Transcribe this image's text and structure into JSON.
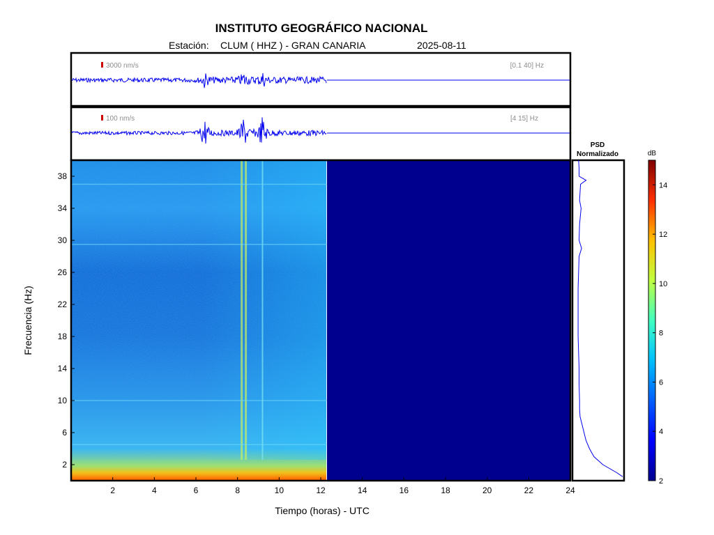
{
  "header": {
    "title": "INSTITUTO GEOGRÁFICO NACIONAL",
    "station_label": "Estación:",
    "station": "CLUM ( HHZ ) - GRAN CANARIA",
    "date": "2025-08-11"
  },
  "colors": {
    "trace": "#0000ee",
    "scale_mark": "#cc0000",
    "no_data": "#00008f",
    "annotation_text": "#8c8c8c"
  },
  "chart_data": [
    {
      "type": "line",
      "panel": "seismogram-broadband",
      "amplitude_scale_label": "3000 nm/s",
      "filter_label": "[0.1 40] Hz",
      "x_range": [
        0,
        24
      ],
      "data_end_hour": 12.3,
      "events_hours": [
        6.4,
        8.3,
        9.2
      ]
    },
    {
      "type": "line",
      "panel": "seismogram-filtered",
      "amplitude_scale_label": "100 nm/s",
      "filter_label": "[4 15] Hz",
      "x_range": [
        0,
        24
      ],
      "data_end_hour": 12.3,
      "events_hours": [
        6.4,
        8.3,
        9.2
      ]
    },
    {
      "type": "heatmap",
      "panel": "spectrogram",
      "xlabel": "Tiempo (horas) - UTC",
      "ylabel": "Frecuencia  (Hz)",
      "xlim": [
        0,
        24
      ],
      "ylim": [
        0,
        40
      ],
      "x_ticks": [
        2,
        4,
        6,
        8,
        10,
        12,
        14,
        16,
        18,
        20,
        22,
        24
      ],
      "y_ticks": [
        2,
        6,
        10,
        14,
        18,
        22,
        26,
        30,
        34,
        38
      ],
      "data_end_hour": 12.3,
      "noisy_band_hz": [
        0,
        2
      ],
      "bright_lines_hours": [
        8.2,
        8.4,
        9.2
      ]
    },
    {
      "type": "line",
      "panel": "psd",
      "title": "PSD",
      "subtitle": "Normalizado",
      "freq_hz": [
        0.5,
        1,
        2,
        3,
        4,
        5,
        6,
        7,
        8,
        9,
        10,
        12,
        14,
        16,
        18,
        20,
        22,
        24,
        26,
        28,
        29,
        30,
        32,
        34,
        35,
        36,
        37,
        37.5,
        38,
        39,
        40
      ],
      "norm_value": [
        1.0,
        0.88,
        0.6,
        0.42,
        0.33,
        0.26,
        0.22,
        0.18,
        0.14,
        0.13,
        0.13,
        0.12,
        0.12,
        0.11,
        0.1,
        0.1,
        0.1,
        0.1,
        0.11,
        0.12,
        0.17,
        0.12,
        0.13,
        0.16,
        0.13,
        0.14,
        0.15,
        0.26,
        0.12,
        0.12,
        0.11
      ]
    },
    {
      "type": "colorbar",
      "panel": "colorbar",
      "unit": "dB",
      "range": [
        2,
        15
      ],
      "ticks": [
        2,
        4,
        6,
        8,
        10,
        12,
        14
      ],
      "colormap": [
        "#00008f",
        "#0000ff",
        "#0080ff",
        "#00ffff",
        "#80ff80",
        "#ffff00",
        "#ff8000",
        "#ff0000",
        "#800000"
      ]
    }
  ]
}
